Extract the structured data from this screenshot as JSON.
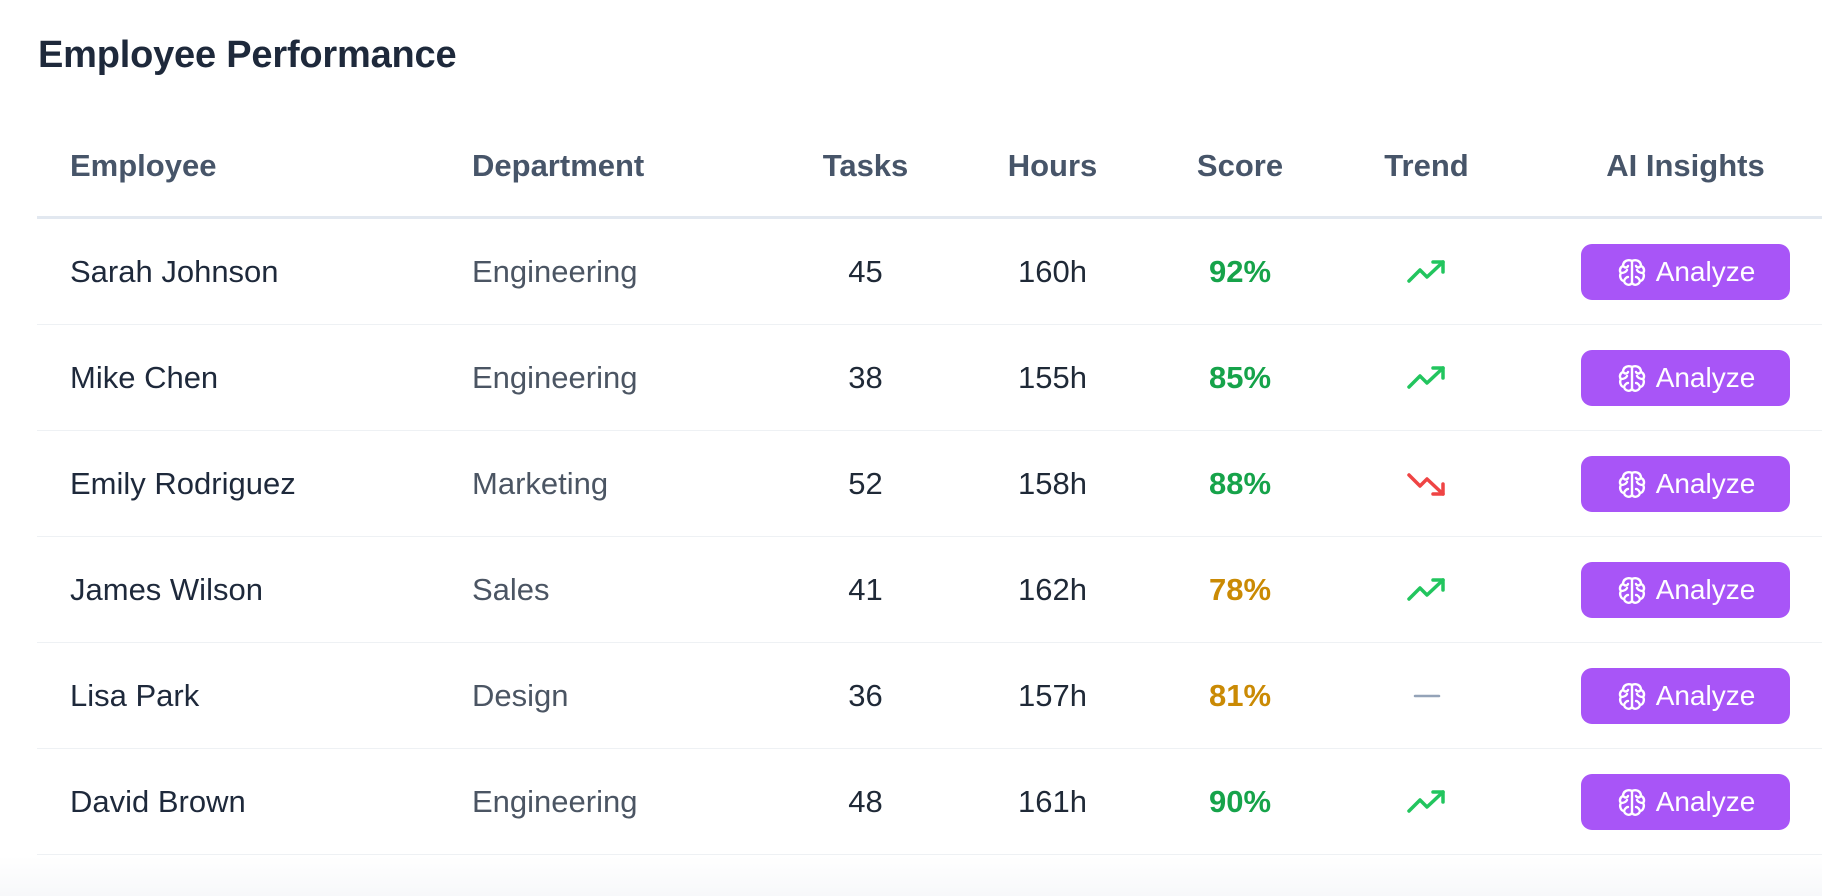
{
  "title": "Employee Performance",
  "columns": {
    "employee": "Employee",
    "department": "Department",
    "tasks": "Tasks",
    "hours": "Hours",
    "score": "Score",
    "trend": "Trend",
    "ai_insights": "AI Insights"
  },
  "colors": {
    "score_high": "#16a34a",
    "score_mid": "#ca8a04",
    "trend_up": "#22c55e",
    "trend_down": "#ef4444",
    "trend_flat": "#94a3b8",
    "accent": "#a855f7"
  },
  "rows": [
    {
      "name": "Sarah Johnson",
      "department": "Engineering",
      "tasks": "45",
      "hours": "160h",
      "score": "92%",
      "score_level": "high",
      "trend": "up",
      "action": "Analyze"
    },
    {
      "name": "Mike Chen",
      "department": "Engineering",
      "tasks": "38",
      "hours": "155h",
      "score": "85%",
      "score_level": "high",
      "trend": "up",
      "action": "Analyze"
    },
    {
      "name": "Emily Rodriguez",
      "department": "Marketing",
      "tasks": "52",
      "hours": "158h",
      "score": "88%",
      "score_level": "high",
      "trend": "down",
      "action": "Analyze"
    },
    {
      "name": "James Wilson",
      "department": "Sales",
      "tasks": "41",
      "hours": "162h",
      "score": "78%",
      "score_level": "mid",
      "trend": "up",
      "action": "Analyze"
    },
    {
      "name": "Lisa Park",
      "department": "Design",
      "tasks": "36",
      "hours": "157h",
      "score": "81%",
      "score_level": "mid",
      "trend": "flat",
      "action": "Analyze"
    },
    {
      "name": "David Brown",
      "department": "Engineering",
      "tasks": "48",
      "hours": "161h",
      "score": "90%",
      "score_level": "high",
      "trend": "up",
      "action": "Analyze"
    }
  ]
}
